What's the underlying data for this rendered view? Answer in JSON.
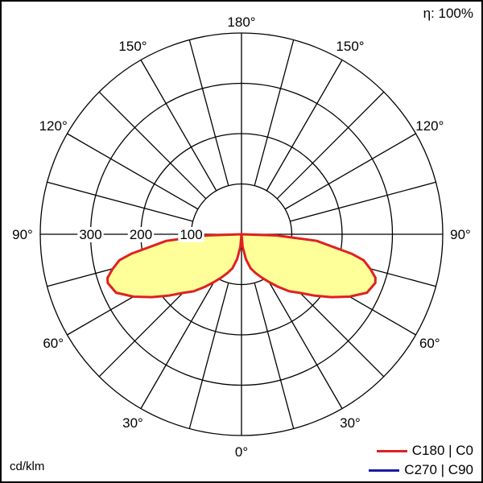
{
  "chart_data": {
    "type": "polar",
    "efficiency_label": "η: 100%",
    "units_label": "cd/klm",
    "radial_ticks": [
      100,
      200,
      300
    ],
    "radial_max": 400,
    "angle_labels": [
      "0°",
      "30°",
      "60°",
      "90°",
      "120°",
      "150°",
      "180°"
    ],
    "legend": [
      {
        "label": "C180 | C0",
        "color": "#e02020"
      },
      {
        "label": "C270 | C90",
        "color": "#1a1aa8"
      }
    ],
    "series": [
      {
        "name": "C180 | C0",
        "color": "#e02020",
        "fill": "#ffff99",
        "points_deg_cd": [
          [
            0,
            0
          ],
          [
            5,
            25
          ],
          [
            10,
            50
          ],
          [
            15,
            70
          ],
          [
            20,
            82
          ],
          [
            25,
            95
          ],
          [
            30,
            110
          ],
          [
            35,
            128
          ],
          [
            40,
            148
          ],
          [
            45,
            165
          ],
          [
            50,
            190
          ],
          [
            55,
            218
          ],
          [
            60,
            248
          ],
          [
            65,
            275
          ],
          [
            70,
            283
          ],
          [
            72,
            280
          ],
          [
            75,
            265
          ],
          [
            78,
            248
          ],
          [
            80,
            222
          ],
          [
            85,
            150
          ],
          [
            88,
            70
          ],
          [
            90,
            0
          ]
        ]
      }
    ]
  }
}
